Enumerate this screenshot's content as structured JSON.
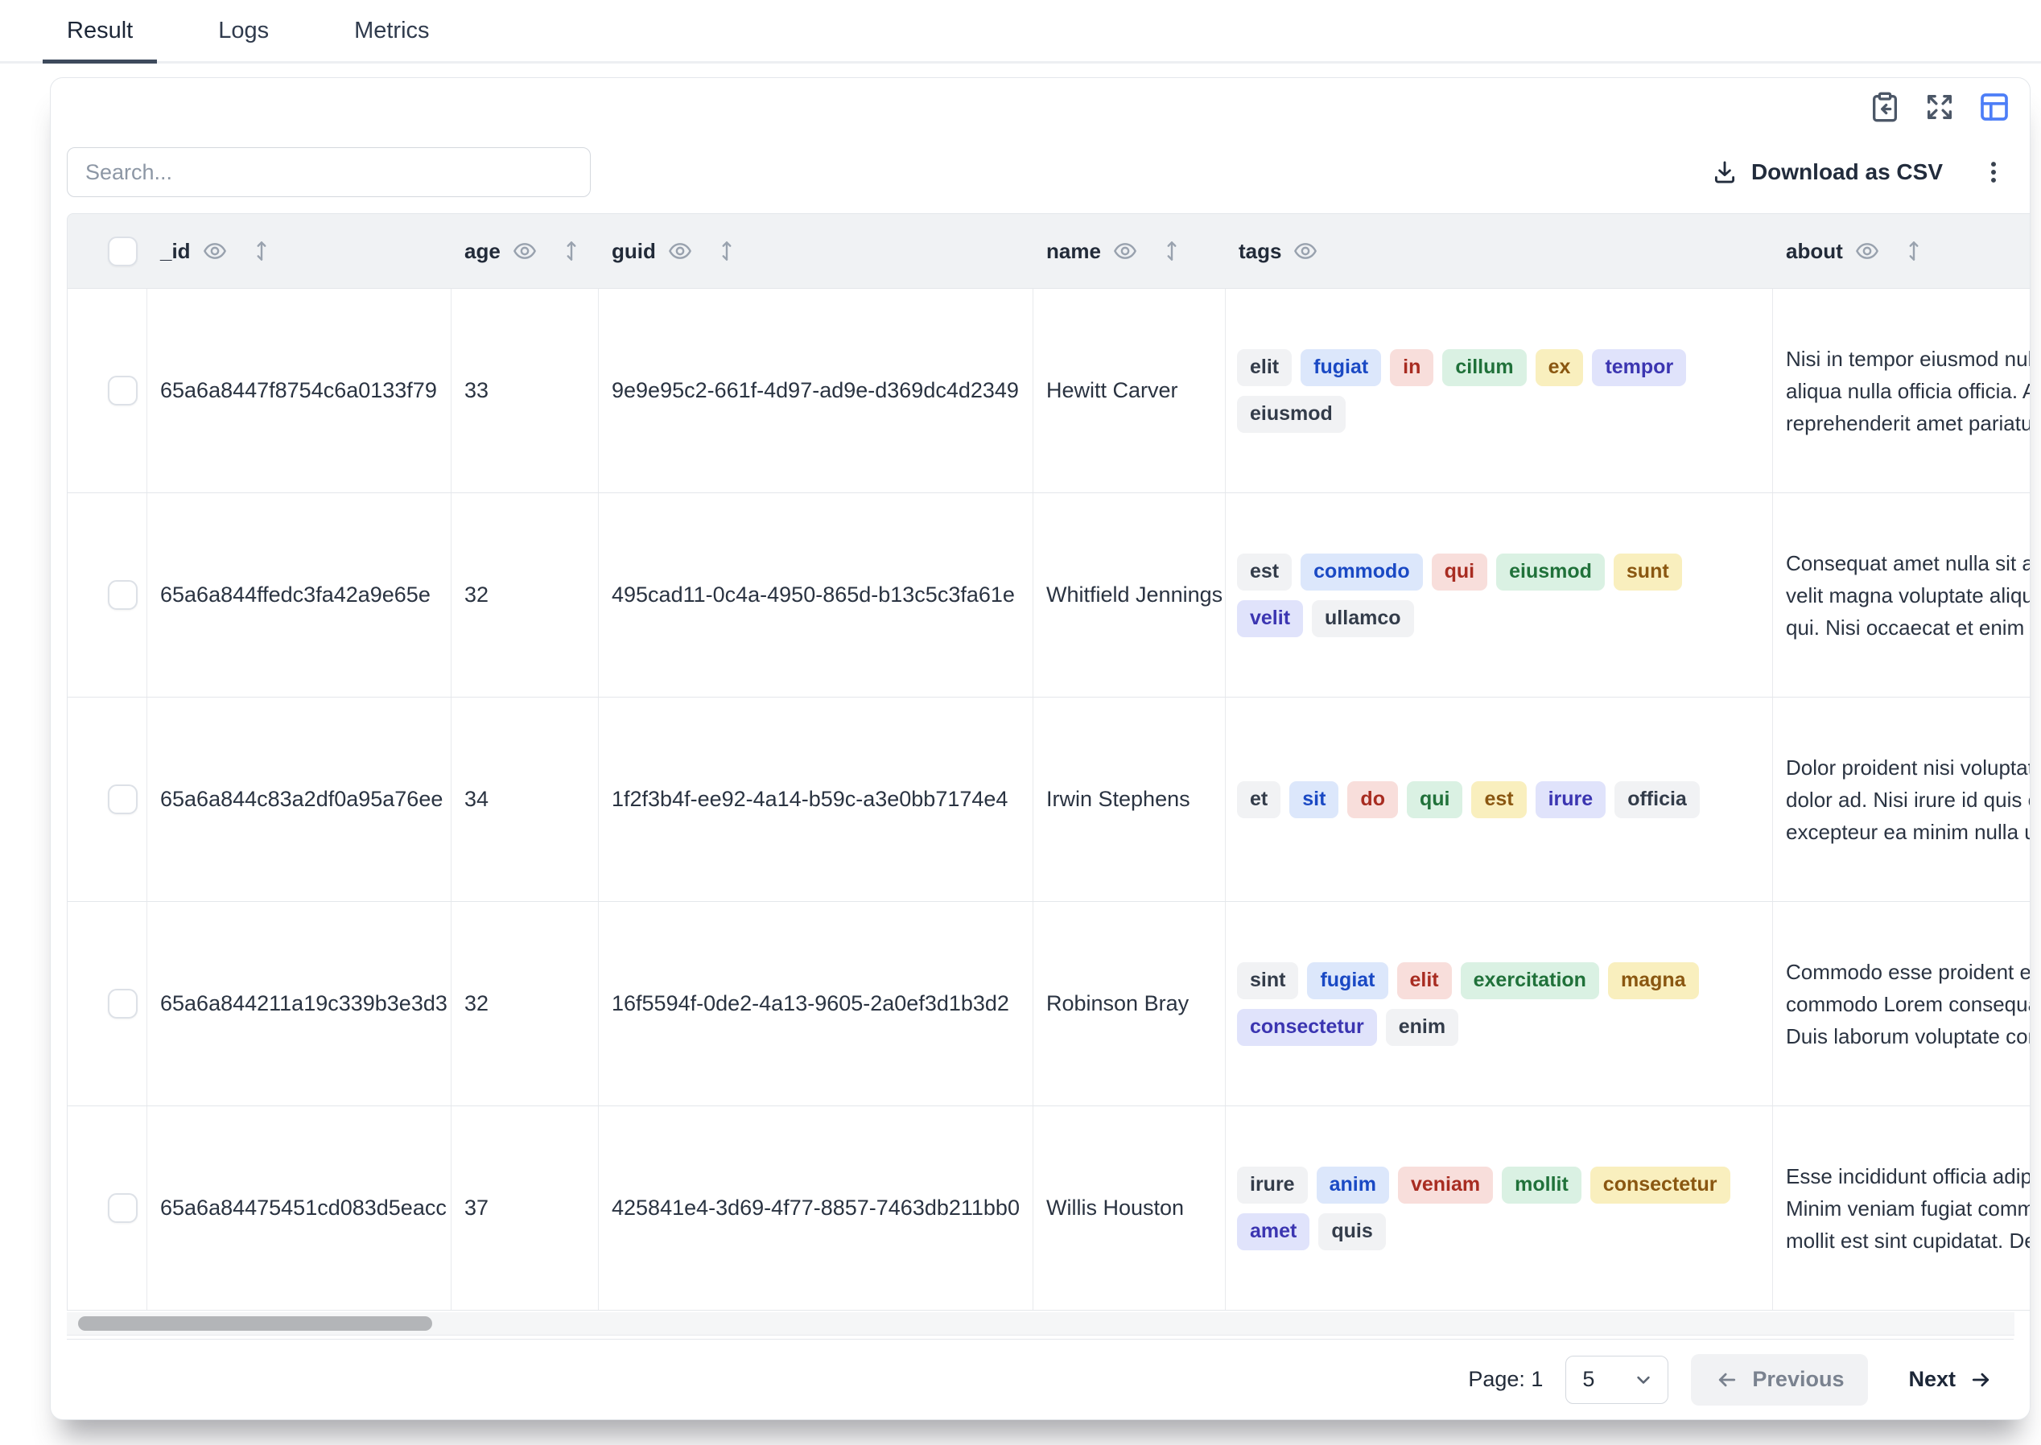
{
  "tabs": [
    {
      "label": "Result",
      "active": true
    },
    {
      "label": "Logs",
      "active": false
    },
    {
      "label": "Metrics",
      "active": false
    }
  ],
  "toolbar": {
    "search_placeholder": "Search...",
    "download_label": "Download as CSV",
    "icons": {
      "copy_to_clipboard": "clipboard-import-icon",
      "fullscreen": "expand-icon",
      "table_view": "layout-table-icon",
      "menu": "kebab-icon"
    }
  },
  "colors": {
    "accent_blue": "#4d7ef7",
    "active_tab_underline": "#3d4a5c",
    "header_bg": "#f0f2f4",
    "tag_gray_bg": "#f1f2f4",
    "tag_gray_text": "#333c4a",
    "tag_blue_bg": "#dce7fb",
    "tag_blue_text": "#1a49c4",
    "tag_red_bg": "#f8dedb",
    "tag_red_text": "#a82c21",
    "tag_green_bg": "#daf1e3",
    "tag_green_text": "#20713a",
    "tag_yellow_bg": "#f9efbe",
    "tag_yellow_text": "#8a5711",
    "tag_purple_bg": "#e0e3fb",
    "tag_purple_text": "#3b35b1"
  },
  "table": {
    "columns": [
      {
        "key": "_id",
        "label": "_id",
        "eye": true,
        "sort": true
      },
      {
        "key": "age",
        "label": "age",
        "eye": true,
        "sort": true
      },
      {
        "key": "guid",
        "label": "guid",
        "eye": true,
        "sort": true
      },
      {
        "key": "name",
        "label": "name",
        "eye": true,
        "sort": true
      },
      {
        "key": "tags",
        "label": "tags",
        "eye": true,
        "sort": false
      },
      {
        "key": "about",
        "label": "about",
        "eye": true,
        "sort": true
      }
    ],
    "rows": [
      {
        "_id": "65a6a8447f8754c6a0133f79",
        "age": "33",
        "guid": "9e9e95c2-661f-4d97-ad9e-d369dc4d2349",
        "name": "Hewitt Carver",
        "tags": [
          [
            {
              "t": "elit",
              "c": "gray"
            },
            {
              "t": "fugiat",
              "c": "blue"
            },
            {
              "t": "in",
              "c": "red"
            },
            {
              "t": "cillum",
              "c": "green"
            },
            {
              "t": "ex",
              "c": "yellow"
            },
            {
              "t": "tempor",
              "c": "purple"
            }
          ],
          [
            {
              "t": "eiusmod",
              "c": "gray"
            }
          ]
        ],
        "about": [
          "Nisi in tempor eiusmod nulla",
          "aliqua nulla officia officia. A",
          "reprehenderit amet pariatu"
        ]
      },
      {
        "_id": "65a6a844ffedc3fa42a9e65e",
        "age": "32",
        "guid": "495cad11-0c4a-4950-865d-b13c5c3fa61e",
        "name": "Whitfield Jennings",
        "tags": [
          [
            {
              "t": "est",
              "c": "gray"
            },
            {
              "t": "commodo",
              "c": "blue"
            },
            {
              "t": "qui",
              "c": "red"
            },
            {
              "t": "eiusmod",
              "c": "green"
            },
            {
              "t": "sunt",
              "c": "yellow"
            }
          ],
          [
            {
              "t": "velit",
              "c": "purple"
            },
            {
              "t": "ullamco",
              "c": "gray"
            }
          ]
        ],
        "about": [
          "Consequat amet nulla sit au",
          "velit magna voluptate aliqu",
          "qui. Nisi occaecat et enim a"
        ]
      },
      {
        "_id": "65a6a844c83a2df0a95a76ee",
        "age": "34",
        "guid": "1f2f3b4f-ee92-4a14-b59c-a3e0bb7174e4",
        "name": "Irwin Stephens",
        "tags": [
          [
            {
              "t": "et",
              "c": "gray"
            },
            {
              "t": "sit",
              "c": "blue"
            },
            {
              "t": "do",
              "c": "red"
            },
            {
              "t": "qui",
              "c": "green"
            },
            {
              "t": "est",
              "c": "yellow"
            },
            {
              "t": "irure",
              "c": "purple"
            },
            {
              "t": "officia",
              "c": "gray"
            }
          ]
        ],
        "about": [
          "Dolor proident nisi voluptat",
          "dolor ad. Nisi irure id quis e",
          "excepteur ea minim nulla u"
        ]
      },
      {
        "_id": "65a6a844211a19c339b3e3d3",
        "age": "32",
        "guid": "16f5594f-0de2-4a13-9605-2a0ef3d1b3d2",
        "name": "Robinson Bray",
        "tags": [
          [
            {
              "t": "sint",
              "c": "gray"
            },
            {
              "t": "fugiat",
              "c": "blue"
            },
            {
              "t": "elit",
              "c": "red"
            },
            {
              "t": "exercitation",
              "c": "green"
            },
            {
              "t": "magna",
              "c": "yellow"
            }
          ],
          [
            {
              "t": "consectetur",
              "c": "purple"
            },
            {
              "t": "enim",
              "c": "gray"
            }
          ]
        ],
        "about": [
          "Commodo esse proident ex",
          "commodo Lorem consequa",
          "Duis laborum voluptate cor"
        ]
      },
      {
        "_id": "65a6a84475451cd083d5eacc",
        "age": "37",
        "guid": "425841e4-3d69-4f77-8857-7463db211bb0",
        "name": "Willis Houston",
        "tags": [
          [
            {
              "t": "irure",
              "c": "gray"
            },
            {
              "t": "anim",
              "c": "blue"
            },
            {
              "t": "veniam",
              "c": "red"
            },
            {
              "t": "mollit",
              "c": "green"
            },
            {
              "t": "consectetur",
              "c": "yellow"
            }
          ],
          [
            {
              "t": "amet",
              "c": "purple"
            },
            {
              "t": "quis",
              "c": "gray"
            }
          ]
        ],
        "about": [
          "Esse incididunt officia adip",
          "Minim veniam fugiat comm",
          "mollit est sint cupidatat. De"
        ]
      }
    ]
  },
  "pagination": {
    "page_label": "Page: 1",
    "page_size": "5",
    "previous_label": "Previous",
    "next_label": "Next"
  }
}
